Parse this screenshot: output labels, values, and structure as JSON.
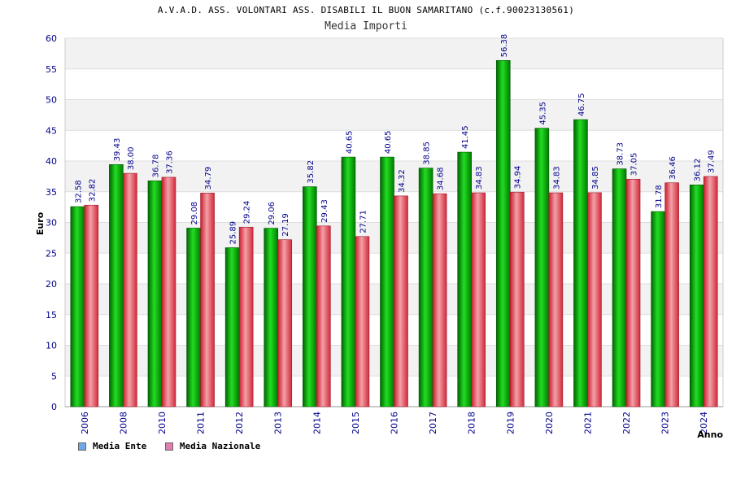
{
  "header": {
    "title": "A.V.A.D. ASS. VOLONTARI ASS. DISABILI IL BUON SAMARITANO (c.f.90023130561)",
    "subtitle": "Media Importi"
  },
  "legend": {
    "ente": "Media Ente",
    "nazionale": "Media Nazionale"
  },
  "colors": {
    "ente": "#00b000",
    "nazionale": "#e03050",
    "ente_swatch": "#6ea8e8",
    "nazionale_swatch": "#e080b0"
  },
  "chart_data": {
    "type": "bar",
    "title": "Media Importi",
    "xlabel": "Anno",
    "ylabel": "Euro",
    "ylim": [
      0,
      60
    ],
    "yticks": [
      0,
      5,
      10,
      15,
      20,
      25,
      30,
      35,
      40,
      45,
      50,
      55,
      60
    ],
    "categories": [
      "2006",
      "2008",
      "2010",
      "2011",
      "2012",
      "2013",
      "2014",
      "2015",
      "2016",
      "2017",
      "2018",
      "2019",
      "2020",
      "2021",
      "2022",
      "2023",
      "2024"
    ],
    "series": [
      {
        "name": "Media Ente",
        "values": [
          32.58,
          39.43,
          36.78,
          29.08,
          25.89,
          29.06,
          35.82,
          40.65,
          40.65,
          38.85,
          41.45,
          56.38,
          45.35,
          46.75,
          38.73,
          31.78,
          36.12
        ],
        "labels": [
          "32.58",
          "39.43",
          "36.78",
          "29.08",
          "25.89",
          "29.06",
          "35.82",
          "40.65",
          "40.65",
          "38.85",
          "41.45",
          "56.38",
          "45.35",
          "46.75",
          "38.73",
          "31.78",
          "36.12"
        ]
      },
      {
        "name": "Media Nazionale",
        "values": [
          32.82,
          38.0,
          37.36,
          34.79,
          29.24,
          27.19,
          29.43,
          27.71,
          34.32,
          34.68,
          34.83,
          34.94,
          34.83,
          34.85,
          37.05,
          36.46,
          37.49
        ],
        "labels": [
          "32.82",
          "38.00",
          "37.36",
          "34.79",
          "29.24",
          "27.19",
          "29.43",
          "27.71",
          "34.32",
          "34.68",
          "34.83",
          "34.94",
          "34.83",
          "34.85",
          "37.05",
          "36.46",
          "37.49"
        ]
      }
    ]
  }
}
